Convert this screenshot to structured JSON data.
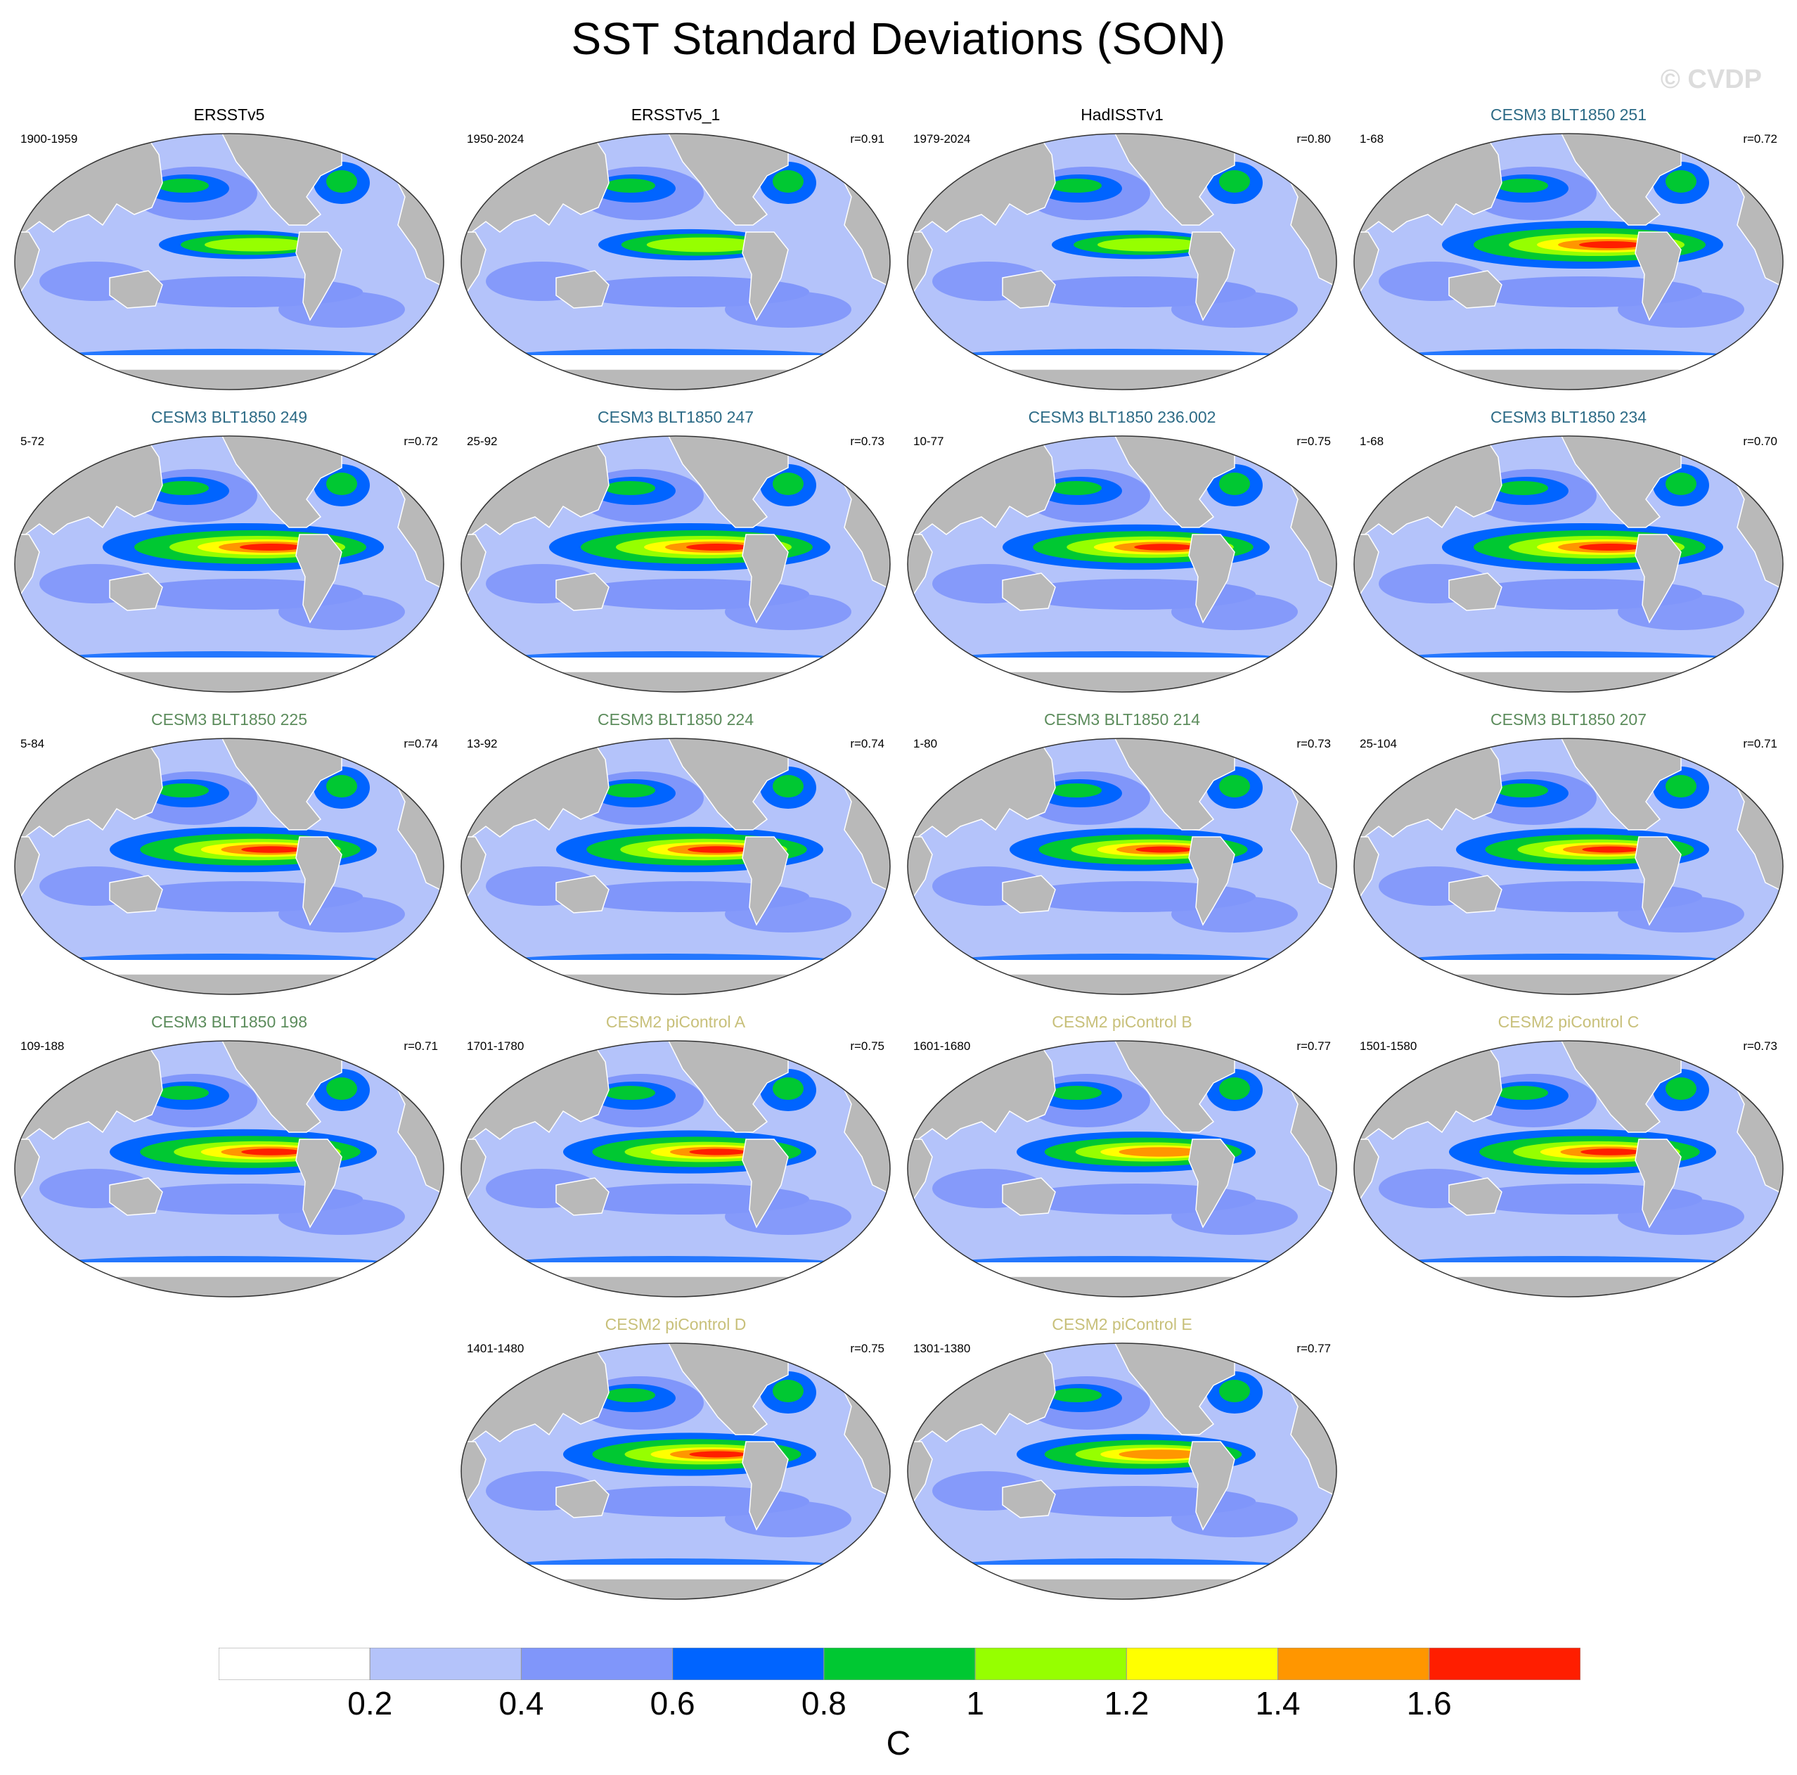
{
  "title": "SST Standard Deviations (SON)",
  "watermark": "© CVDP",
  "title_colors": {
    "obs": "#000000",
    "cesm3a": "#2d6b86",
    "cesm3b": "#5c8c5c",
    "cesm2": "#c8c07a"
  },
  "panels": [
    {
      "title": "ERSSTv5",
      "years": "1900-1959",
      "r": "",
      "group": "obs",
      "enso_strength": 0.6
    },
    {
      "title": "ERSSTv5_1",
      "years": "1950-2024",
      "r": "r=0.91",
      "group": "obs",
      "enso_strength": 0.65
    },
    {
      "title": "HadISSTv1",
      "years": "1979-2024",
      "r": "r=0.80",
      "group": "obs",
      "enso_strength": 0.6
    },
    {
      "title": "CESM3 BLT1850 251",
      "years": "1-68",
      "r": "r=0.72",
      "group": "cesm3a",
      "enso_strength": 1.0
    },
    {
      "title": "CESM3 BLT1850 249",
      "years": "5-72",
      "r": "r=0.72",
      "group": "cesm3a",
      "enso_strength": 1.0
    },
    {
      "title": "CESM3 BLT1850 247",
      "years": "25-92",
      "r": "r=0.73",
      "group": "cesm3a",
      "enso_strength": 1.0
    },
    {
      "title": "CESM3 BLT1850 236.002",
      "years": "10-77",
      "r": "r=0.75",
      "group": "cesm3a",
      "enso_strength": 0.95
    },
    {
      "title": "CESM3 BLT1850 234",
      "years": "1-68",
      "r": "r=0.70",
      "group": "cesm3a",
      "enso_strength": 1.0
    },
    {
      "title": "CESM3 BLT1850 225",
      "years": "5-84",
      "r": "r=0.74",
      "group": "cesm3b",
      "enso_strength": 0.95
    },
    {
      "title": "CESM3 BLT1850 224",
      "years": "13-92",
      "r": "r=0.74",
      "group": "cesm3b",
      "enso_strength": 0.95
    },
    {
      "title": "CESM3 BLT1850 214",
      "years": "1-80",
      "r": "r=0.73",
      "group": "cesm3b",
      "enso_strength": 0.9
    },
    {
      "title": "CESM3 BLT1850 207",
      "years": "25-104",
      "r": "r=0.71",
      "group": "cesm3b",
      "enso_strength": 0.9
    },
    {
      "title": "CESM3 BLT1850 198",
      "years": "109-188",
      "r": "r=0.71",
      "group": "cesm3b",
      "enso_strength": 0.95
    },
    {
      "title": "CESM2 piControl A",
      "years": "1701-1780",
      "r": "r=0.75",
      "group": "cesm2",
      "enso_strength": 0.9
    },
    {
      "title": "CESM2 piControl B",
      "years": "1601-1680",
      "r": "r=0.77",
      "group": "cesm2",
      "enso_strength": 0.85
    },
    {
      "title": "CESM2 piControl C",
      "years": "1501-1580",
      "r": "r=0.73",
      "group": "cesm2",
      "enso_strength": 0.95
    },
    {
      "title": "CESM2 piControl D",
      "years": "1401-1480",
      "r": "r=0.75",
      "group": "cesm2",
      "enso_strength": 0.9
    },
    {
      "title": "CESM2 piControl E",
      "years": "1301-1380",
      "r": "r=0.77",
      "group": "cesm2",
      "enso_strength": 0.85
    }
  ],
  "colorbar": {
    "units": "C",
    "levels": [
      "0.2",
      "0.4",
      "0.6",
      "0.8",
      "1",
      "1.2",
      "1.4",
      "1.6"
    ],
    "colors": [
      "#ffffff",
      "#b4c3fa",
      "#8096fa",
      "#0064ff",
      "#00c832",
      "#96ff00",
      "#ffff00",
      "#ff9600",
      "#ff1e00"
    ]
  },
  "land_color": "#b9b9b9"
}
